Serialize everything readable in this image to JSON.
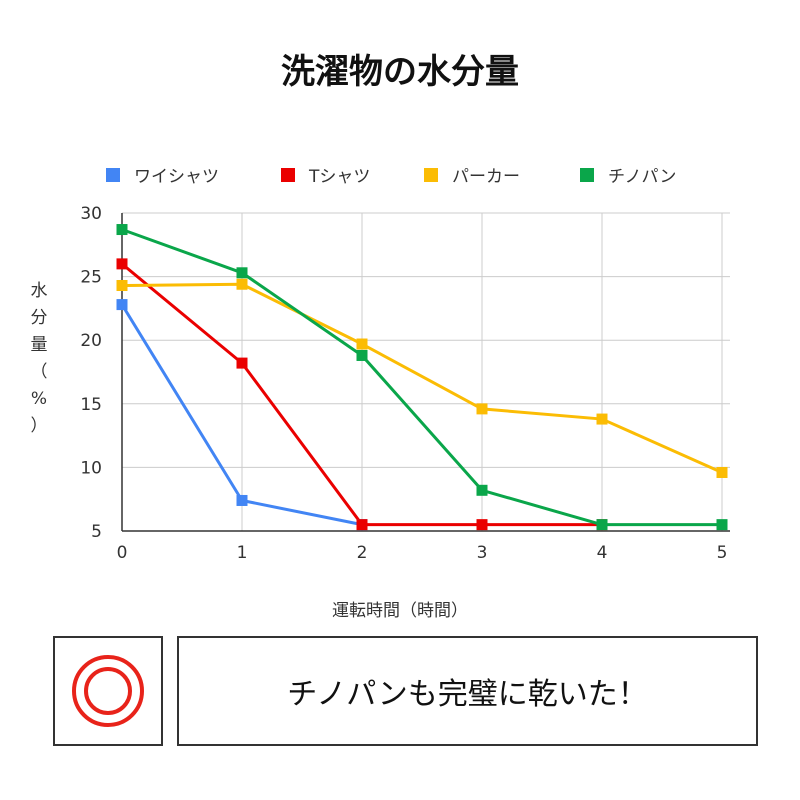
{
  "title": "洗濯物の水分量",
  "legend": [
    {
      "label": "ワイシャツ",
      "color": "#4285f4"
    },
    {
      "label": "Tシャツ",
      "color": "#ea0000"
    },
    {
      "label": "パーカー",
      "color": "#fbbc04"
    },
    {
      "label": "チノパン",
      "color": "#0aa64a"
    }
  ],
  "ylabel_chars": [
    "水",
    "分",
    "量",
    "（",
    "%",
    "）"
  ],
  "xlabel": "運転時間（時間）",
  "chart_data": {
    "type": "line",
    "title": "洗濯物の水分量",
    "xlabel": "運転時間（時間）",
    "ylabel": "水分量（%）",
    "x": [
      0,
      1,
      2,
      3,
      4,
      5
    ],
    "xlim": [
      0,
      5
    ],
    "ylim": [
      5,
      30
    ],
    "yticks": [
      5,
      10,
      15,
      20,
      25,
      30
    ],
    "grid": true,
    "legend_position": "top",
    "series": [
      {
        "name": "ワイシャツ",
        "color": "#4285f4",
        "values": [
          22.8,
          7.4,
          5.5,
          null,
          null,
          null
        ]
      },
      {
        "name": "Tシャツ",
        "color": "#ea0000",
        "values": [
          26.0,
          18.2,
          5.5,
          5.5,
          5.5,
          null
        ]
      },
      {
        "name": "パーカー",
        "color": "#fbbc04",
        "values": [
          24.3,
          24.4,
          19.7,
          14.6,
          13.8,
          9.6
        ]
      },
      {
        "name": "チノパン",
        "color": "#0aa64a",
        "values": [
          28.7,
          25.3,
          18.8,
          8.2,
          5.5,
          5.5
        ]
      }
    ]
  },
  "result": {
    "mark": "double-circle-icon",
    "mark_color": "#e8231a",
    "text": "チノパンも完璧に乾いた！"
  }
}
